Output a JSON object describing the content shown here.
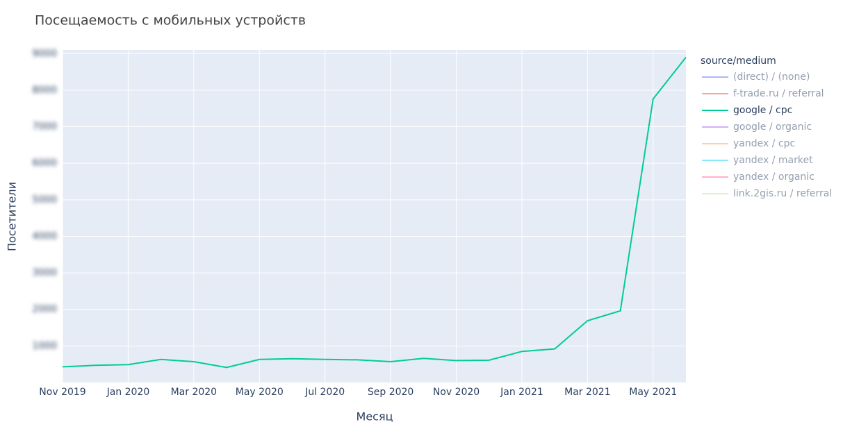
{
  "chart_data": {
    "type": "line",
    "title": "Посещаемость с мобильных устройств",
    "xlabel": "Месяц",
    "ylabel": "Посетители",
    "legend_title": "source/medium",
    "legend_position": "right",
    "grid": true,
    "x": [
      "2019-11",
      "2019-12",
      "2020-01",
      "2020-02",
      "2020-03",
      "2020-04",
      "2020-05",
      "2020-06",
      "2020-07",
      "2020-08",
      "2020-09",
      "2020-10",
      "2020-11",
      "2020-12",
      "2021-01",
      "2021-02",
      "2021-03",
      "2021-04",
      "2021-05",
      "2021-06"
    ],
    "xlim": [
      "2019-11",
      "2021-06"
    ],
    "xticks": [
      {
        "value": "2019-11",
        "label": "Nov 2019"
      },
      {
        "value": "2020-01",
        "label": "Jan 2020"
      },
      {
        "value": "2020-03",
        "label": "Mar 2020"
      },
      {
        "value": "2020-05",
        "label": "May 2020"
      },
      {
        "value": "2020-07",
        "label": "Jul 2020"
      },
      {
        "value": "2020-09",
        "label": "Sep 2020"
      },
      {
        "value": "2020-11",
        "label": "Nov 2020"
      },
      {
        "value": "2021-01",
        "label": "Jan 2021"
      },
      {
        "value": "2021-03",
        "label": "Mar 2021"
      },
      {
        "value": "2021-05",
        "label": "May 2021"
      }
    ],
    "ylim": [
      0,
      9100
    ],
    "yticks": [
      1000,
      2000,
      3000,
      4000,
      5000,
      6000,
      7000,
      8000,
      9000
    ],
    "series": [
      {
        "name": "(direct) / (none)",
        "color": "#636efa",
        "visible": "legendonly"
      },
      {
        "name": "f-trade.ru / referral",
        "color": "#ef553b",
        "visible": "legendonly"
      },
      {
        "name": "google / cpc",
        "color": "#00cc96",
        "values": [
          430,
          470,
          490,
          630,
          570,
          410,
          630,
          650,
          630,
          620,
          570,
          660,
          600,
          610,
          850,
          920,
          1690,
          1960,
          7760,
          8900
        ]
      },
      {
        "name": "google / organic",
        "color": "#ab63fa",
        "visible": "legendonly"
      },
      {
        "name": "yandex / cpc",
        "color": "#ffa15a",
        "visible": "legendonly"
      },
      {
        "name": "yandex / market",
        "color": "#19d3f3",
        "visible": "legendonly"
      },
      {
        "name": "yandex / organic",
        "color": "#ff6692",
        "visible": "legendonly"
      },
      {
        "name": "link.2gis.ru / referral",
        "color": "#b6e880",
        "visible": "legendonly"
      }
    ]
  }
}
